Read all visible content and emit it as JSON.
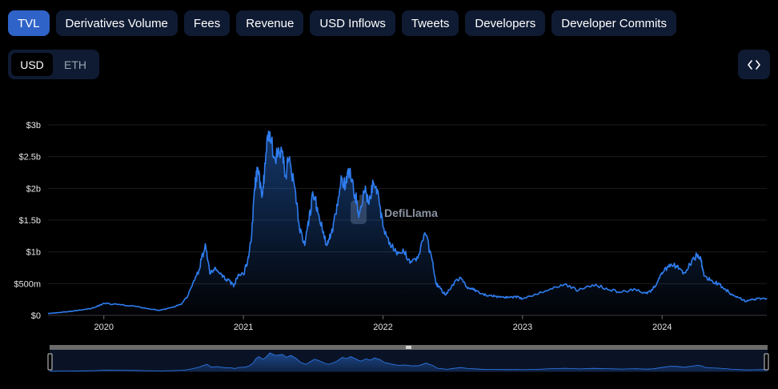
{
  "tabs": [
    {
      "label": "TVL",
      "active": true
    },
    {
      "label": "Derivatives Volume",
      "active": false
    },
    {
      "label": "Fees",
      "active": false
    },
    {
      "label": "Revenue",
      "active": false
    },
    {
      "label": "USD Inflows",
      "active": false
    },
    {
      "label": "Tweets",
      "active": false
    },
    {
      "label": "Developers",
      "active": false
    },
    {
      "label": "Developer Commits",
      "active": false
    }
  ],
  "currency_toggle": {
    "usd_label": "USD",
    "eth_label": "ETH",
    "selected": "USD"
  },
  "embed_icon": "code-brackets-icon",
  "watermark": {
    "text": "DefiLlama"
  },
  "colors": {
    "line": "#2f7df0",
    "accent": "#2f63c8",
    "panel": "#0f1b33",
    "background": "#000000"
  },
  "chart_data": {
    "type": "area",
    "title": "TVL",
    "xlabel": "",
    "ylabel": "",
    "x_ticks": [
      "2020",
      "2021",
      "2022",
      "2023",
      "2024"
    ],
    "y_ticks": [
      "$0",
      "$500m",
      "$1b",
      "$1.5b",
      "$2b",
      "$2.5b",
      "$3b"
    ],
    "ylim": [
      0,
      3000000000
    ],
    "xlim": [
      2019.6,
      2024.75
    ],
    "grid": true,
    "series": [
      {
        "name": "TVL (USD)",
        "x": [
          2019.6,
          2019.75,
          2019.85,
          2019.93,
          2020.0,
          2020.1,
          2020.2,
          2020.3,
          2020.4,
          2020.48,
          2020.55,
          2020.6,
          2020.65,
          2020.68,
          2020.7,
          2020.73,
          2020.76,
          2020.8,
          2020.85,
          2020.9,
          2020.93,
          2020.96,
          2021.0,
          2021.03,
          2021.06,
          2021.08,
          2021.1,
          2021.13,
          2021.15,
          2021.18,
          2021.22,
          2021.27,
          2021.3,
          2021.33,
          2021.37,
          2021.4,
          2021.44,
          2021.47,
          2021.5,
          2021.53,
          2021.57,
          2021.6,
          2021.63,
          2021.66,
          2021.7,
          2021.73,
          2021.76,
          2021.8,
          2021.83,
          2021.87,
          2021.9,
          2021.93,
          2021.97,
          2022.0,
          2022.05,
          2022.1,
          2022.15,
          2022.2,
          2022.25,
          2022.3,
          2022.35,
          2022.38,
          2022.4,
          2022.45,
          2022.5,
          2022.55,
          2022.6,
          2022.65,
          2022.7,
          2022.75,
          2022.8,
          2022.85,
          2022.9,
          2022.95,
          2023.0,
          2023.1,
          2023.2,
          2023.3,
          2023.4,
          2023.5,
          2023.6,
          2023.7,
          2023.8,
          2023.88,
          2023.93,
          2023.97,
          2024.0,
          2024.05,
          2024.1,
          2024.15,
          2024.2,
          2024.25,
          2024.28,
          2024.3,
          2024.35,
          2024.4,
          2024.45,
          2024.5,
          2024.55,
          2024.6,
          2024.65,
          2024.7,
          2024.75
        ],
        "values": [
          30000000,
          60000000,
          90000000,
          120000000,
          190000000,
          170000000,
          150000000,
          110000000,
          80000000,
          120000000,
          170000000,
          300000000,
          550000000,
          700000000,
          900000000,
          1100000000,
          650000000,
          750000000,
          600000000,
          550000000,
          450000000,
          620000000,
          650000000,
          850000000,
          1300000000,
          2000000000,
          2300000000,
          1900000000,
          2200000000,
          2900000000,
          2500000000,
          2650000000,
          2200000000,
          2500000000,
          2000000000,
          1400000000,
          1100000000,
          1500000000,
          1900000000,
          1700000000,
          1300000000,
          1100000000,
          1300000000,
          1600000000,
          2200000000,
          2000000000,
          2300000000,
          1900000000,
          1600000000,
          1950000000,
          1750000000,
          2100000000,
          1850000000,
          1400000000,
          1150000000,
          950000000,
          1000000000,
          850000000,
          900000000,
          1300000000,
          900000000,
          500000000,
          450000000,
          320000000,
          480000000,
          600000000,
          450000000,
          400000000,
          340000000,
          310000000,
          300000000,
          290000000,
          280000000,
          300000000,
          260000000,
          330000000,
          420000000,
          490000000,
          390000000,
          480000000,
          430000000,
          360000000,
          420000000,
          350000000,
          400000000,
          540000000,
          650000000,
          800000000,
          780000000,
          650000000,
          800000000,
          950000000,
          850000000,
          620000000,
          550000000,
          500000000,
          420000000,
          320000000,
          280000000,
          220000000,
          250000000,
          270000000,
          270000000
        ]
      }
    ],
    "brush": {
      "start": 2019.6,
      "end": 2024.75,
      "visible": true
    }
  }
}
